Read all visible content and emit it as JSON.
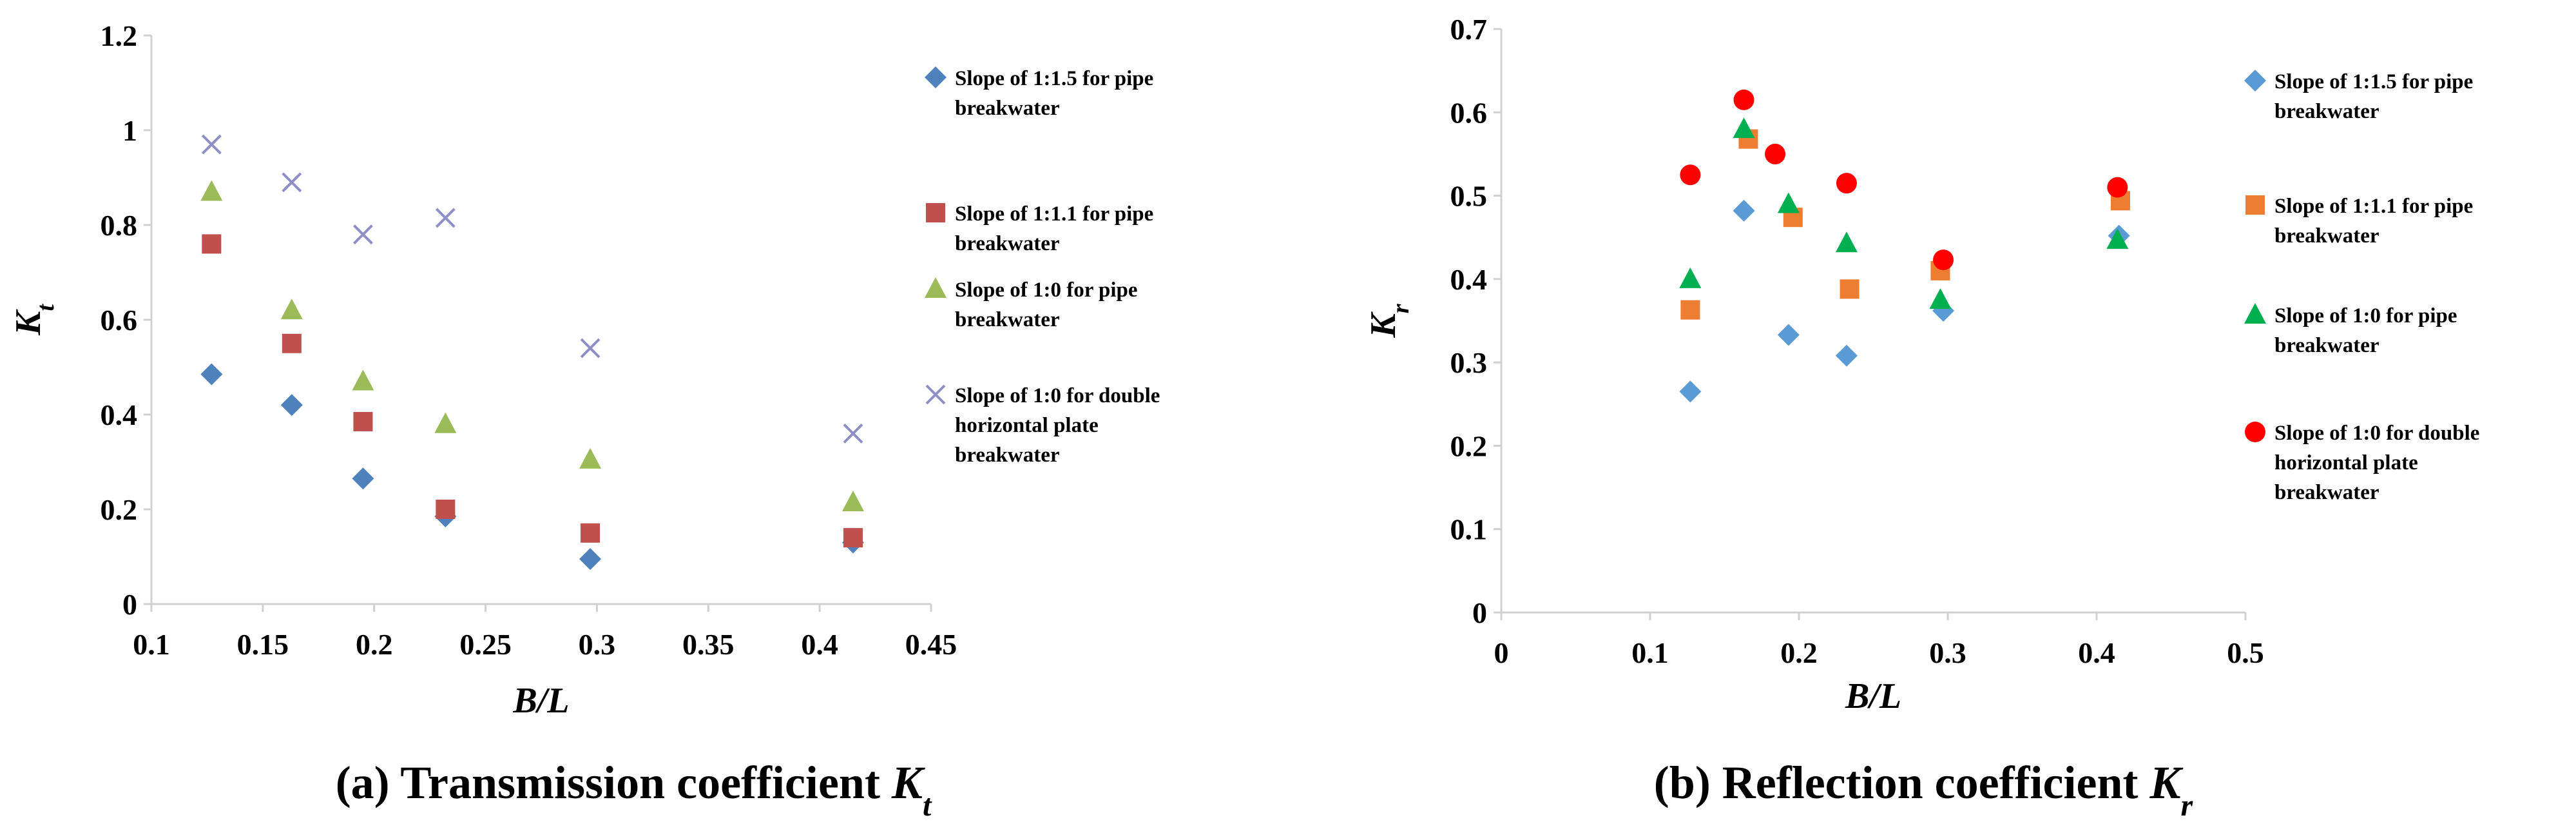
{
  "chart_data": [
    {
      "type": "scatter",
      "caption": "(a) Transmission coefficient ",
      "caption_symbol": "K",
      "caption_sub": "t",
      "xlabel": "B/L",
      "ylabel": "K",
      "ylabel_sub": "t",
      "xlim": [
        0.1,
        0.45
      ],
      "ylim": [
        0,
        1.2
      ],
      "xticks": [
        "0.1",
        "0.15",
        "0.2",
        "0.25",
        "0.3",
        "0.35",
        "0.4",
        "0.45"
      ],
      "yticks": [
        "0",
        "0.2",
        "0.4",
        "0.6",
        "0.8",
        "1",
        "1.2"
      ],
      "grid": false,
      "legend_position": "right",
      "series": [
        {
          "name_lines": [
            "Slope of 1:1.5 for pipe",
            "breakwater"
          ],
          "marker": "diamond",
          "color": "#4F81BD",
          "points": [
            [
              0.127,
              0.485
            ],
            [
              0.163,
              0.42
            ],
            [
              0.195,
              0.265
            ],
            [
              0.232,
              0.185
            ],
            [
              0.297,
              0.095
            ],
            [
              0.415,
              0.13
            ]
          ]
        },
        {
          "name_lines": [
            "Slope of 1:1.1 for pipe",
            "breakwater"
          ],
          "marker": "square",
          "color": "#C0504D",
          "points": [
            [
              0.127,
              0.76
            ],
            [
              0.163,
              0.55
            ],
            [
              0.195,
              0.385
            ],
            [
              0.232,
              0.2
            ],
            [
              0.297,
              0.15
            ],
            [
              0.415,
              0.14
            ]
          ]
        },
        {
          "name_lines": [
            "Slope of 1:0 for pipe",
            "breakwater"
          ],
          "marker": "triangle",
          "color": "#9BBB59",
          "points": [
            [
              0.127,
              0.87
            ],
            [
              0.163,
              0.62
            ],
            [
              0.195,
              0.47
            ],
            [
              0.232,
              0.38
            ],
            [
              0.297,
              0.305
            ],
            [
              0.415,
              0.215
            ]
          ]
        },
        {
          "name_lines": [
            "Slope of 1:0 for double",
            "horizontal plate",
            "breakwater"
          ],
          "marker": "x",
          "color": "#8F8FC8",
          "points": [
            [
              0.127,
              0.97
            ],
            [
              0.163,
              0.89
            ],
            [
              0.195,
              0.78
            ],
            [
              0.232,
              0.815
            ],
            [
              0.297,
              0.54
            ],
            [
              0.415,
              0.36
            ]
          ]
        }
      ]
    },
    {
      "type": "scatter",
      "caption": "(b) Reflection coefficient ",
      "caption_symbol": "K",
      "caption_sub": "r",
      "xlabel": "B/L",
      "ylabel": "K",
      "ylabel_sub": "r",
      "xlim": [
        0,
        0.5
      ],
      "ylim": [
        0,
        0.7
      ],
      "xticks": [
        "0",
        "0.1",
        "0.2",
        "0.3",
        "0.4",
        "0.5"
      ],
      "yticks": [
        "0",
        "0.1",
        "0.2",
        "0.3",
        "0.4",
        "0.5",
        "0.6",
        "0.7"
      ],
      "grid": false,
      "legend_position": "right",
      "series": [
        {
          "name_lines": [
            "Slope of 1:1.5 for pipe",
            "breakwater"
          ],
          "marker": "diamond",
          "color": "#5B9BD5",
          "points": [
            [
              0.127,
              0.265
            ],
            [
              0.163,
              0.482
            ],
            [
              0.193,
              0.333
            ],
            [
              0.232,
              0.308
            ],
            [
              0.297,
              0.362
            ],
            [
              0.415,
              0.452
            ]
          ]
        },
        {
          "name_lines": [
            "Slope of 1:1.1 for pipe",
            "breakwater"
          ],
          "marker": "square",
          "color": "#ED7D31",
          "points": [
            [
              0.127,
              0.363
            ],
            [
              0.166,
              0.568
            ],
            [
              0.196,
              0.474
            ],
            [
              0.234,
              0.388
            ],
            [
              0.295,
              0.41
            ],
            [
              0.416,
              0.494
            ]
          ]
        },
        {
          "name_lines": [
            "Slope of 1:0 for pipe",
            "breakwater"
          ],
          "marker": "triangle",
          "color": "#00B050",
          "points": [
            [
              0.127,
              0.4
            ],
            [
              0.163,
              0.58
            ],
            [
              0.193,
              0.49
            ],
            [
              0.232,
              0.443
            ],
            [
              0.295,
              0.375
            ],
            [
              0.414,
              0.447
            ]
          ]
        },
        {
          "name_lines": [
            "Slope of 1:0 for double",
            "horizontal plate",
            "breakwater"
          ],
          "marker": "circle",
          "color": "#FF0000",
          "points": [
            [
              0.127,
              0.525
            ],
            [
              0.163,
              0.615
            ],
            [
              0.184,
              0.55
            ],
            [
              0.232,
              0.515
            ],
            [
              0.297,
              0.423
            ],
            [
              0.414,
              0.51
            ]
          ]
        }
      ]
    }
  ]
}
